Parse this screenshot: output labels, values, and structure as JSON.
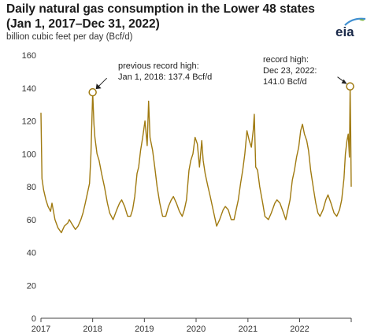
{
  "header": {
    "title_line1": "Daily natural gas consumption in the Lower 48 states",
    "title_line2": "(Jan 1, 2017–Dec 31, 2022)",
    "subtitle": "billion cubic feet per day (Bcf/d)",
    "logo_text": "eia"
  },
  "colors": {
    "series": "#a07a10",
    "logo_text": "#1b2a4a",
    "logo_swoosh": "#3e8ed0",
    "logo_leaf": "#7bb342"
  },
  "chart_data": {
    "type": "line",
    "title": "Daily natural gas consumption in the Lower 48 states",
    "ylabel": "billion cubic feet per day (Bcf/d)",
    "ylim": [
      0,
      160
    ],
    "yticks": [
      0,
      20,
      40,
      60,
      80,
      100,
      120,
      140,
      160
    ],
    "xlim": [
      "2017-01-01",
      "2022-12-31"
    ],
    "xticks": [
      "2017",
      "2018",
      "2019",
      "2020",
      "2021",
      "2022"
    ],
    "grid": false,
    "series": [
      {
        "x": [
          "2017-01-01",
          "2017-01-08",
          "2017-01-20",
          "2017-02-05",
          "2017-02-20",
          "2017-03-10",
          "2017-03-20",
          "2017-04-10",
          "2017-05-01",
          "2017-05-25",
          "2017-06-15",
          "2017-07-10",
          "2017-07-20",
          "2017-08-10",
          "2017-09-01",
          "2017-09-20",
          "2017-10-10",
          "2017-10-25",
          "2017-11-10",
          "2017-11-25",
          "2017-12-10",
          "2017-12-20",
          "2018-01-01",
          "2018-01-10",
          "2018-01-17",
          "2018-02-01",
          "2018-02-15",
          "2018-03-05",
          "2018-03-25",
          "2018-04-15",
          "2018-05-01",
          "2018-05-25",
          "2018-06-20",
          "2018-07-10",
          "2018-07-25",
          "2018-08-15",
          "2018-09-05",
          "2018-09-25",
          "2018-10-10",
          "2018-10-25",
          "2018-11-10",
          "2018-11-22",
          "2018-12-05",
          "2018-12-20",
          "2019-01-05",
          "2019-01-21",
          "2019-01-31",
          "2019-02-10",
          "2019-02-28",
          "2019-03-15",
          "2019-04-01",
          "2019-04-20",
          "2019-05-10",
          "2019-06-01",
          "2019-06-20",
          "2019-07-10",
          "2019-07-25",
          "2019-08-15",
          "2019-09-05",
          "2019-09-25",
          "2019-10-10",
          "2019-10-25",
          "2019-11-12",
          "2019-11-25",
          "2019-12-10",
          "2019-12-25",
          "2020-01-10",
          "2020-01-25",
          "2020-02-10",
          "2020-02-20",
          "2020-03-05",
          "2020-03-25",
          "2020-04-10",
          "2020-04-25",
          "2020-05-10",
          "2020-05-25",
          "2020-06-15",
          "2020-07-10",
          "2020-07-25",
          "2020-08-15",
          "2020-09-05",
          "2020-09-25",
          "2020-10-10",
          "2020-10-25",
          "2020-11-10",
          "2020-11-25",
          "2020-12-10",
          "2020-12-25",
          "2021-01-10",
          "2021-01-25",
          "2021-02-08",
          "2021-02-15",
          "2021-02-25",
          "2021-03-10",
          "2021-03-25",
          "2021-04-15",
          "2021-05-01",
          "2021-05-25",
          "2021-06-15",
          "2021-07-10",
          "2021-07-25",
          "2021-08-15",
          "2021-09-05",
          "2021-09-25",
          "2021-10-10",
          "2021-10-25",
          "2021-11-10",
          "2021-11-25",
          "2021-12-10",
          "2021-12-25",
          "2022-01-08",
          "2022-01-21",
          "2022-02-04",
          "2022-02-20",
          "2022-03-05",
          "2022-03-20",
          "2022-04-10",
          "2022-04-25",
          "2022-05-10",
          "2022-05-25",
          "2022-06-15",
          "2022-07-05",
          "2022-07-20",
          "2022-08-10",
          "2022-09-01",
          "2022-09-20",
          "2022-10-10",
          "2022-10-25",
          "2022-11-10",
          "2022-11-20",
          "2022-12-01",
          "2022-12-10",
          "2022-12-18",
          "2022-12-23",
          "2022-12-27",
          "2022-12-31"
        ],
        "y": [
          125,
          85,
          78,
          72,
          68,
          65,
          70,
          60,
          55,
          52,
          56,
          58,
          60,
          57,
          54,
          56,
          60,
          64,
          70,
          76,
          82,
          100,
          137.4,
          118,
          110,
          100,
          96,
          88,
          80,
          70,
          64,
          60,
          66,
          70,
          72,
          68,
          62,
          62,
          66,
          74,
          88,
          92,
          102,
          110,
          120,
          105,
          132,
          110,
          102,
          92,
          80,
          70,
          62,
          62,
          68,
          72,
          74,
          70,
          65,
          62,
          66,
          72,
          90,
          96,
          100,
          110,
          106,
          92,
          108,
          96,
          88,
          80,
          74,
          68,
          62,
          56,
          60,
          66,
          68,
          66,
          60,
          60,
          66,
          72,
          82,
          90,
          100,
          114,
          108,
          104,
          115,
          124,
          92,
          90,
          80,
          70,
          62,
          60,
          64,
          70,
          72,
          70,
          65,
          60,
          66,
          72,
          84,
          90,
          98,
          104,
          114,
          118,
          112,
          108,
          102,
          90,
          78,
          70,
          64,
          62,
          66,
          72,
          75,
          70,
          64,
          62,
          66,
          72,
          85,
          100,
          108,
          112,
          98,
          141.0,
          115,
          80
        ]
      }
    ],
    "annotations": [
      {
        "x": "2018-01-01",
        "y": 137.4,
        "line1": "previous record high:",
        "line2": "Jan 1, 2018: 137.4 Bcf/d"
      },
      {
        "x": "2022-12-23",
        "y": 141.0,
        "line1": "record high:",
        "line2": "Dec 23, 2022:",
        "line3": "141.0 Bcf/d"
      }
    ]
  }
}
